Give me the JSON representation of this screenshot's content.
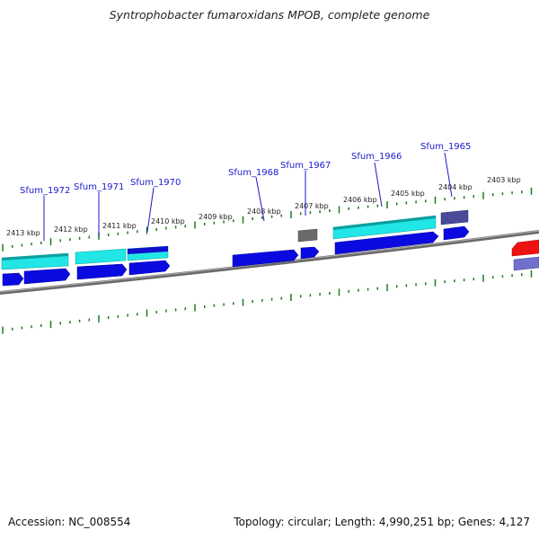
{
  "title": "Syntrophobacter fumaroxidans MPOB, complete genome",
  "accession": "Accession: NC_008554",
  "summary": "Topology: circular; Length: 4,990,251 bp; Genes: 4,127",
  "colors": {
    "backbone": "#7a7a7a",
    "ticks": "#1e7a1e",
    "cds_forward": "#0a0ae0",
    "cds_cyan": "#22e6e6",
    "gray_feature": "#6a6a6a",
    "slate_feature": "#4a4a99",
    "red_feature": "#ee1111",
    "periwinkle_feature": "#7070cc",
    "label": "#1a1acc"
  },
  "scale_labels": [
    {
      "text": "2413 kbp",
      "x": 2413
    },
    {
      "text": "2412 kbp",
      "x": 2412
    },
    {
      "text": "2411 kbp",
      "x": 2411
    },
    {
      "text": "2410 kbp",
      "x": 2410
    },
    {
      "text": "2409 kbp",
      "x": 2409
    },
    {
      "text": "2408 kbp",
      "x": 2408
    },
    {
      "text": "2407 kbp",
      "x": 2407
    },
    {
      "text": "2406 kbp",
      "x": 2406
    },
    {
      "text": "2405 kbp",
      "x": 2405
    },
    {
      "text": "2404 kbp",
      "x": 2404
    },
    {
      "text": "2403 kbp",
      "x": 2403
    }
  ],
  "gene_labels": [
    {
      "text": "Sfum_1972"
    },
    {
      "text": "Sfum_1971"
    },
    {
      "text": "Sfum_1970"
    },
    {
      "text": "Sfum_1968"
    },
    {
      "text": "Sfum_1967"
    },
    {
      "text": "Sfum_1966"
    },
    {
      "text": "Sfum_1965"
    }
  ]
}
